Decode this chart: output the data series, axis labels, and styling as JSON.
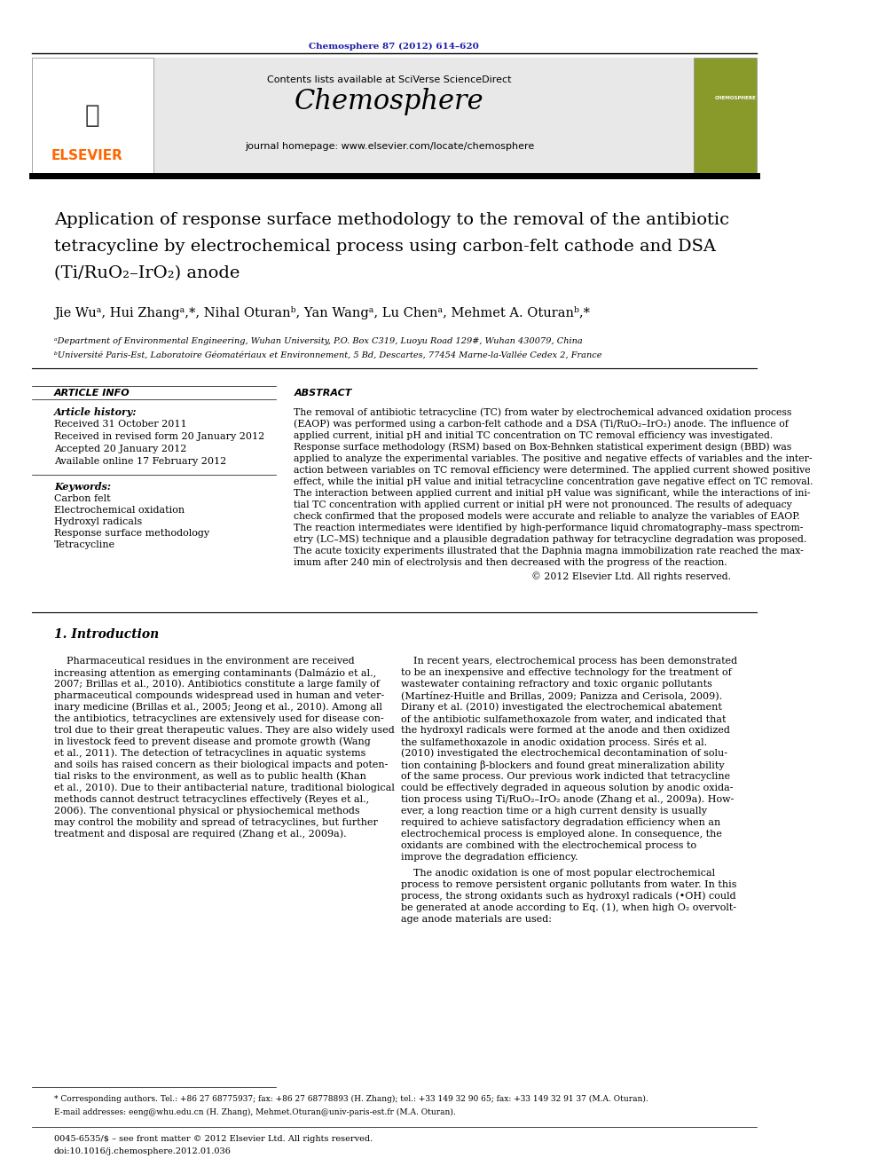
{
  "page_width": 9.92,
  "page_height": 13.23,
  "bg_color": "#ffffff",
  "journal_ref": "Chemosphere 87 (2012) 614–620",
  "journal_ref_color": "#1a1aaa",
  "header_bg": "#e8e8e8",
  "contents_line": "Contents lists available at SciVerse ScienceDirect",
  "sciverse_color": "#2255cc",
  "journal_name": "Chemosphere",
  "journal_homepage": "journal homepage: www.elsevier.com/locate/chemosphere",
  "elsevier_color": "#FF6600",
  "title_line1": "Application of response surface methodology to the removal of the antibiotic",
  "title_line2": "tetracycline by electrochemical process using carbon-felt cathode and DSA",
  "title_line3": "(Ti/RuO₂–IrO₂) anode",
  "authors": "Jie Wuᵃ, Hui Zhangᵃ,*, Nihal Oturanᵇ, Yan Wangᵃ, Lu Chenᵃ, Mehmet A. Oturanᵇ,*",
  "affil_a": "ᵃDepartment of Environmental Engineering, Wuhan University, P.O. Box C319, Luoyu Road 129#, Wuhan 430079, China",
  "affil_b": "ᵇUniversité Paris-Est, Laboratoire Géomatériaux et Environnement, 5 Bd, Descartes, 77454 Marne-la-Vallée Cedex 2, France",
  "article_info_title": "ARTICLE INFO",
  "abstract_title": "ABSTRACT",
  "history_title": "Article history:",
  "history_lines": [
    "Received 31 October 2011",
    "Received in revised form 20 January 2012",
    "Accepted 20 January 2012",
    "Available online 17 February 2012"
  ],
  "keywords_title": "Keywords:",
  "keywords": [
    "Carbon felt",
    "Electrochemical oxidation",
    "Hydroxyl radicals",
    "Response surface methodology",
    "Tetracycline"
  ],
  "abstract_text": "The removal of antibiotic tetracycline (TC) from water by electrochemical advanced oxidation process (EAOP) was performed using a carbon-felt cathode and a DSA (Ti/RuO₂–IrO₂) anode. The influence of applied current, initial pH and initial TC concentration on TC removal efficiency was investigated. Response surface methodology (RSM) based on Box-Behnken statistical experiment design (BBD) was applied to analyze the experimental variables. The positive and negative effects of variables and the interaction between variables on TC removal efficiency were determined. The applied current showed positive effect, while the initial pH value and initial tetracycline concentration gave negative effect on TC removal. The interaction between applied current and initial pH value was significant, while the interactions of initial TC concentration with applied current or initial pH were not pronounced. The results of adequacy check confirmed that the proposed models were accurate and reliable to analyze the variables of EAOP. The reaction intermediates were identified by high-performance liquid chromatography–mass spectrometry (LC–MS) technique and a plausible degradation pathway for tetracycline degradation was proposed. The acute toxicity experiments illustrated that the Daphnia magna immobilization rate reached the maximum after 240 min of electrolysis and then decreased with the progress of the reaction.",
  "copyright": "© 2012 Elsevier Ltd. All rights reserved.",
  "intro_title": "1. Introduction",
  "intro_col1_para1": "Pharmaceutical residues in the environment are received increasing attention as emerging contaminants (Dalmázio et al., 2007; Brillas et al., 2010). Antibiotics constitute a large family of pharmaceutical compounds widespread used in human and veterinary medicine (Brillas et al., 2005; Jeong et al., 2010). Among all the antibiotics, tetracyclines are extensively used for disease control due to their great therapeutic values. They are also widely used in livestock feed to prevent disease and promote growth (Wang et al., 2011). The detection of tetracyclines in aquatic systems and soils has raised concern as their biological impacts and potential risks to the environment, as well as to public health (Khan et al., 2010). Due to their antibacterial nature, traditional biological methods cannot destruct tetracyclines effectively (Reyes et al., 2006). The conventional physical or physiochemical methods may control the mobility and spread of tetracyclines, but further treatment and disposal are required (Zhang et al., 2009a).",
  "intro_col2_para1": "In recent years, electrochemical process has been demonstrated to be an inexpensive and effective technology for the treatment of wastewater containing refractory and toxic organic pollutants (Martínez-Huitle and Brillas, 2009; Panizza and Cerisola, 2009). Dirany et al. (2010) investigated the electrochemical abatement of the antibiotic sulfamethoxazole from water, and indicated that the hydroxyl radicals were formed at the anode and then oxidized the sulfamethoxazole in anodic oxidation process. Sirés et al. (2010) investigated the electrochemical decontamination of solution containing β-blockers and found great mineralization ability of the same process. Our previous work indicted that tetracycline could be effectively degraded in aqueous solution by anodic oxidation process using Ti/RuO₂–IrO₂ anode (Zhang et al., 2009a). However, a long reaction time or a high current density is usually required to achieve satisfactory degradation efficiency when an electrochemical process is employed alone. In consequence, the oxidants are combined with the electrochemical process to improve the degradation efficiency.",
  "intro_col2_para2": "The anodic oxidation is one of most popular electrochemical process to remove persistent organic pollutants from water. In this process, the strong oxidants such as hydroxyl radicals (•OH) could be generated at anode according to Eq. (1), when high O₂ overvoltage anode materials are used:",
  "footnote1": "* Corresponding authors. Tel.: +86 27 68775937; fax: +86 27 68778893 (H. Zhang); tel.: +33 149 32 90 65; fax: +33 149 32 91 37 (M.A. Oturan).",
  "footnote2": "E-mail addresses: eeng@whu.edu.cn (H. Zhang), Mehmet.Oturan@univ-paris-est.fr (M.A. Oturan).",
  "issn_line": "0045-6535/$ – see front matter © 2012 Elsevier Ltd. All rights reserved.",
  "doi_line": "doi:10.1016/j.chemosphere.2012.01.036"
}
